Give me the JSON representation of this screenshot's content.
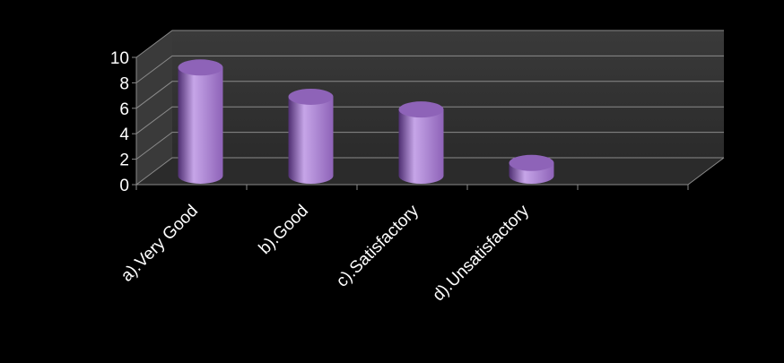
{
  "chart_data": {
    "type": "bar",
    "title": "",
    "xlabel": "",
    "ylabel": "",
    "categories": [
      "a).Very Good",
      "b).Good",
      "c).Satisfactory",
      "d).Unsatisfactory"
    ],
    "values": [
      8.5,
      6.2,
      5.2,
      1.0
    ],
    "ylim": [
      0,
      10
    ],
    "yticks": [
      "0",
      "2",
      "4",
      "6",
      "8",
      "10"
    ],
    "grid": true,
    "legend": "none",
    "style": "3d-cylinder",
    "colors": {
      "bar": "#8e63b8",
      "bar_light": "#c6a5e8",
      "bar_dark": "#4f2f72",
      "wall": "#3a3a3a",
      "floor": "#2b2b2b",
      "grid": "#8a8a8a",
      "text": "#ffffff",
      "background": "#000000"
    }
  }
}
